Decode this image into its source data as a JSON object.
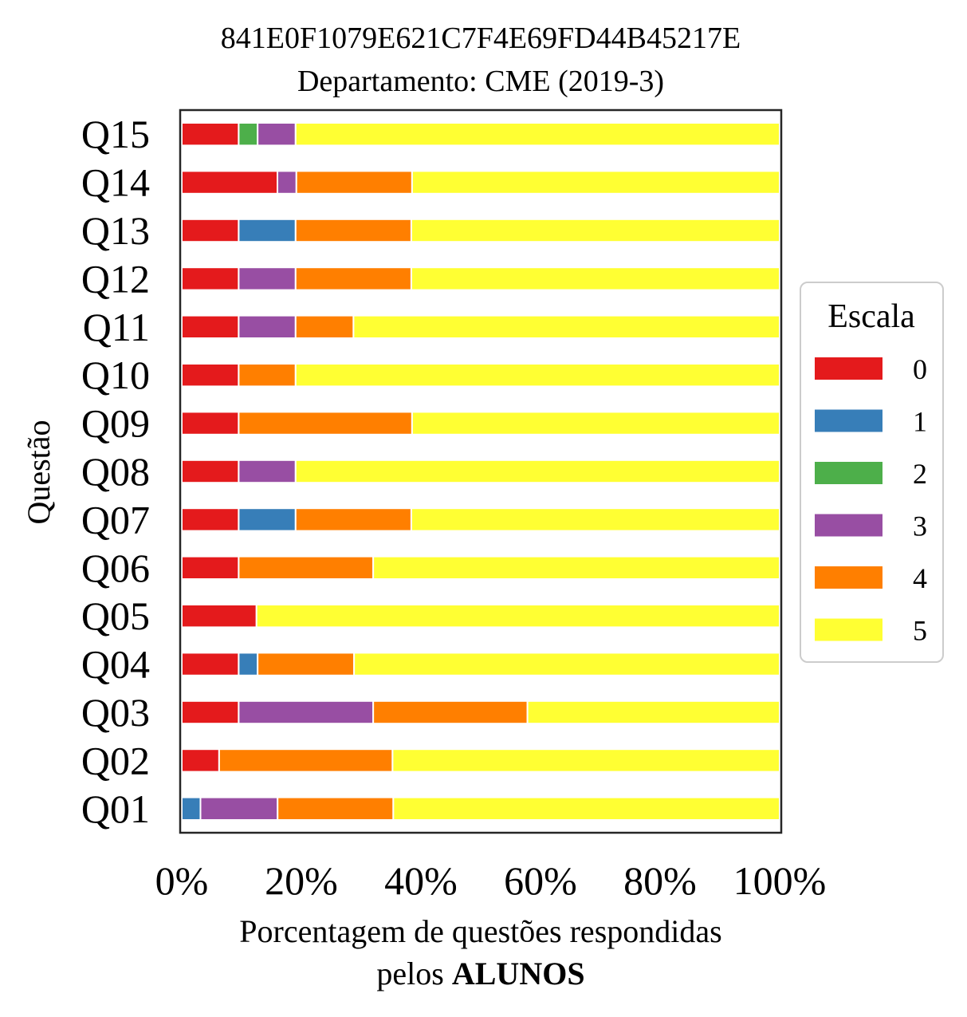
{
  "chart_data": {
    "type": "bar",
    "orientation": "horizontal",
    "stacked": true,
    "title": "841E0F1079E621C7F4E69FD44B45217E",
    "subtitle": "Departamento: CME (2019-3)",
    "ylabel": "Questão",
    "xlabel_line1": "Porcentagem de questões respondidas",
    "xlabel_line2_prefix": "pelos ",
    "xlabel_line2_bold": "ALUNOS",
    "xlim": [
      0,
      100
    ],
    "xticks": [
      "0%",
      "20%",
      "40%",
      "60%",
      "80%",
      "100%"
    ],
    "grid": false,
    "categories": [
      "Q01",
      "Q02",
      "Q03",
      "Q04",
      "Q05",
      "Q06",
      "Q07",
      "Q08",
      "Q09",
      "Q10",
      "Q11",
      "Q12",
      "Q13",
      "Q14",
      "Q15"
    ],
    "series": [
      {
        "name": "0",
        "color": "#e41a1c",
        "values": [
          0,
          6.25,
          9.52,
          9.52,
          12.5,
          9.52,
          9.52,
          9.52,
          9.52,
          9.52,
          9.52,
          9.52,
          9.52,
          16.0,
          9.52
        ]
      },
      {
        "name": "1",
        "color": "#377eb8",
        "values": [
          3.13,
          0,
          0,
          3.17,
          0,
          0,
          9.52,
          0,
          0,
          0,
          0,
          0,
          9.52,
          0,
          0
        ]
      },
      {
        "name": "2",
        "color": "#4daf4a",
        "values": [
          0,
          0,
          0,
          0,
          0,
          0,
          0,
          0,
          0,
          0,
          0,
          0,
          0,
          0,
          3.17
        ]
      },
      {
        "name": "3",
        "color": "#984ea3",
        "values": [
          12.9,
          0,
          22.5,
          0,
          0,
          0,
          0,
          9.52,
          0,
          0,
          9.52,
          9.52,
          0,
          3.17,
          6.35
        ]
      },
      {
        "name": "4",
        "color": "#ff7f00",
        "values": [
          19.35,
          29.0,
          25.8,
          16.13,
          0,
          22.5,
          19.35,
          0,
          29.0,
          9.52,
          9.68,
          19.35,
          19.35,
          19.35,
          0
        ]
      },
      {
        "name": "5",
        "color": "#ffff33",
        "values": [
          64.62,
          64.75,
          42.18,
          71.18,
          87.5,
          67.98,
          61.61,
          80.96,
          61.48,
          80.96,
          71.28,
          61.61,
          61.61,
          61.48,
          80.96
        ]
      }
    ],
    "legend": {
      "title": "Escala",
      "placement": "right"
    }
  }
}
